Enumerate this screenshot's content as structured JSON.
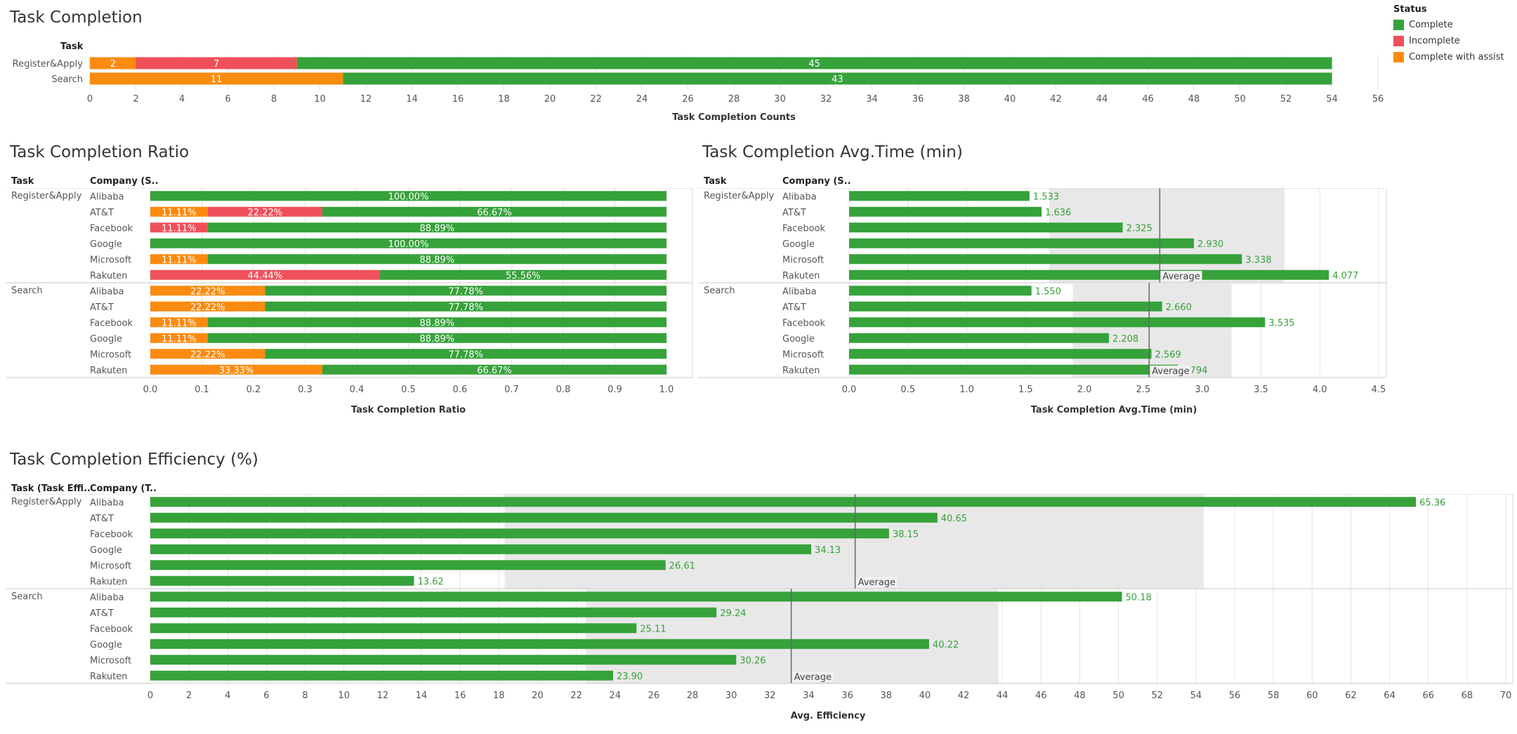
{
  "colors": {
    "complete": "#36a23a",
    "incomplete": "#f0505a",
    "assist": "#fb8b10",
    "grid": "#e4e4e4",
    "band": "#e8e8e8",
    "text": "#555555",
    "valueText": "#36a23a"
  },
  "legend": {
    "title": "Status",
    "items": [
      {
        "label": "Complete",
        "color": "#36a23a"
      },
      {
        "label": "Incomplete",
        "color": "#f0505a"
      },
      {
        "label": "Complete with assist",
        "color": "#fb8b10"
      }
    ]
  },
  "chart_data": [
    {
      "id": "completion",
      "type": "bar",
      "stacked": true,
      "title": "Task Completion",
      "row_header": "Task",
      "xlabel": "Task Completion Counts",
      "xlim": [
        0,
        56
      ],
      "xticks": [
        0,
        2,
        4,
        6,
        8,
        10,
        12,
        14,
        16,
        18,
        20,
        22,
        24,
        26,
        28,
        30,
        32,
        34,
        36,
        38,
        40,
        42,
        44,
        46,
        48,
        50,
        52,
        54,
        56
      ],
      "categories": [
        "Register&Apply",
        "Search"
      ],
      "series": [
        {
          "name": "Complete with assist",
          "color": "#fb8b10",
          "values": [
            2,
            11
          ],
          "labels": [
            "2",
            "11"
          ]
        },
        {
          "name": "Incomplete",
          "color": "#f0505a",
          "values": [
            7,
            0
          ],
          "labels": [
            "7",
            ""
          ]
        },
        {
          "name": "Complete",
          "color": "#36a23a",
          "values": [
            45,
            43
          ],
          "labels": [
            "45",
            "43"
          ]
        }
      ]
    },
    {
      "id": "ratio",
      "type": "bar",
      "stacked": true,
      "title": "Task Completion Ratio",
      "headers": [
        "Task",
        "Company (S.."
      ],
      "xlabel": "Task Completion Ratio",
      "xlim": [
        0,
        1
      ],
      "xticks": [
        "0.0",
        "0.1",
        "0.2",
        "0.3",
        "0.4",
        "0.5",
        "0.6",
        "0.7",
        "0.8",
        "0.9",
        "1.0"
      ],
      "groups": [
        {
          "task": "Register&Apply",
          "rows": [
            {
              "company": "Alibaba",
              "segments": [
                {
                  "status": "Complete",
                  "value": 1.0,
                  "label": "100.00%"
                }
              ]
            },
            {
              "company": "AT&T",
              "segments": [
                {
                  "status": "Complete with assist",
                  "value": 0.1111,
                  "label": "11.11%"
                },
                {
                  "status": "Incomplete",
                  "value": 0.2222,
                  "label": "22.22%"
                },
                {
                  "status": "Complete",
                  "value": 0.6667,
                  "label": "66.67%"
                }
              ]
            },
            {
              "company": "Facebook",
              "segments": [
                {
                  "status": "Incomplete",
                  "value": 0.1111,
                  "label": "11.11%"
                },
                {
                  "status": "Complete",
                  "value": 0.8889,
                  "label": "88.89%"
                }
              ]
            },
            {
              "company": "Google",
              "segments": [
                {
                  "status": "Complete",
                  "value": 1.0,
                  "label": "100.00%"
                }
              ]
            },
            {
              "company": "Microsoft",
              "segments": [
                {
                  "status": "Complete with assist",
                  "value": 0.1111,
                  "label": "11.11%"
                },
                {
                  "status": "Complete",
                  "value": 0.8889,
                  "label": "88.89%"
                }
              ]
            },
            {
              "company": "Rakuten",
              "segments": [
                {
                  "status": "Incomplete",
                  "value": 0.4444,
                  "label": "44.44%"
                },
                {
                  "status": "Complete",
                  "value": 0.5556,
                  "label": "55.56%"
                }
              ]
            }
          ]
        },
        {
          "task": "Search",
          "rows": [
            {
              "company": "Alibaba",
              "segments": [
                {
                  "status": "Complete with assist",
                  "value": 0.2222,
                  "label": "22.22%"
                },
                {
                  "status": "Complete",
                  "value": 0.7778,
                  "label": "77.78%"
                }
              ]
            },
            {
              "company": "AT&T",
              "segments": [
                {
                  "status": "Complete with assist",
                  "value": 0.2222,
                  "label": "22.22%"
                },
                {
                  "status": "Complete",
                  "value": 0.7778,
                  "label": "77.78%"
                }
              ]
            },
            {
              "company": "Facebook",
              "segments": [
                {
                  "status": "Complete with assist",
                  "value": 0.1111,
                  "label": "11.11%"
                },
                {
                  "status": "Complete",
                  "value": 0.8889,
                  "label": "88.89%"
                }
              ]
            },
            {
              "company": "Google",
              "segments": [
                {
                  "status": "Complete with assist",
                  "value": 0.1111,
                  "label": "11.11%"
                },
                {
                  "status": "Complete",
                  "value": 0.8889,
                  "label": "88.89%"
                }
              ]
            },
            {
              "company": "Microsoft",
              "segments": [
                {
                  "status": "Complete with assist",
                  "value": 0.2222,
                  "label": "22.22%"
                },
                {
                  "status": "Complete",
                  "value": 0.7778,
                  "label": "77.78%"
                }
              ]
            },
            {
              "company": "Rakuten",
              "segments": [
                {
                  "status": "Complete with assist",
                  "value": 0.3333,
                  "label": "33.33%"
                },
                {
                  "status": "Complete",
                  "value": 0.6667,
                  "label": "66.67%"
                }
              ]
            }
          ]
        }
      ]
    },
    {
      "id": "avgtime",
      "type": "bar",
      "title": "Task Completion Avg.Time (min)",
      "headers": [
        "Task",
        "Company (S.."
      ],
      "xlabel": "Task Completion Avg.Time (min)",
      "xlim": [
        0,
        4.5
      ],
      "xticks": [
        "0.0",
        "0.5",
        "1.0",
        "1.5",
        "2.0",
        "2.5",
        "3.0",
        "3.5",
        "4.0",
        "4.5"
      ],
      "reference_label": "Average",
      "groups": [
        {
          "task": "Register&Apply",
          "average": 2.64,
          "band": [
            1.7,
            3.7
          ],
          "rows": [
            {
              "company": "Alibaba",
              "value": 1.533,
              "label": "1.533"
            },
            {
              "company": "AT&T",
              "value": 1.636,
              "label": "1.636"
            },
            {
              "company": "Facebook",
              "value": 2.325,
              "label": "2.325"
            },
            {
              "company": "Google",
              "value": 2.93,
              "label": "2.930"
            },
            {
              "company": "Microsoft",
              "value": 3.338,
              "label": "3.338"
            },
            {
              "company": "Rakuten",
              "value": 4.077,
              "label": "4.077"
            }
          ]
        },
        {
          "task": "Search",
          "average": 2.55,
          "band": [
            1.9,
            3.25
          ],
          "rows": [
            {
              "company": "Alibaba",
              "value": 1.55,
              "label": "1.550"
            },
            {
              "company": "AT&T",
              "value": 2.66,
              "label": "2.660"
            },
            {
              "company": "Facebook",
              "value": 3.535,
              "label": "3.535"
            },
            {
              "company": "Google",
              "value": 2.208,
              "label": "2.208"
            },
            {
              "company": "Microsoft",
              "value": 2.569,
              "label": "2.569"
            },
            {
              "company": "Rakuten",
              "value": 2.794,
              "label": "2.794"
            }
          ]
        }
      ]
    },
    {
      "id": "efficiency",
      "type": "bar",
      "title": "Task Completion Efficiency (%)",
      "headers": [
        "Task (Task Effi..",
        "Company (T.."
      ],
      "xlabel": "Avg. Efficiency",
      "xlim": [
        0,
        70
      ],
      "xticks": [
        "0",
        "2",
        "4",
        "6",
        "8",
        "10",
        "12",
        "14",
        "16",
        "18",
        "20",
        "22",
        "24",
        "26",
        "28",
        "30",
        "32",
        "34",
        "36",
        "38",
        "40",
        "42",
        "44",
        "46",
        "48",
        "50",
        "52",
        "54",
        "56",
        "58",
        "60",
        "62",
        "64",
        "66",
        "68",
        "70"
      ],
      "reference_label": "Average",
      "groups": [
        {
          "task": "Register&Apply",
          "average": 36.4,
          "band": [
            18.3,
            54.4
          ],
          "rows": [
            {
              "company": "Alibaba",
              "value": 65.36,
              "label": "65.36"
            },
            {
              "company": "AT&T",
              "value": 40.65,
              "label": "40.65"
            },
            {
              "company": "Facebook",
              "value": 38.15,
              "label": "38.15"
            },
            {
              "company": "Google",
              "value": 34.13,
              "label": "34.13"
            },
            {
              "company": "Microsoft",
              "value": 26.61,
              "label": "26.61"
            },
            {
              "company": "Rakuten",
              "value": 13.62,
              "label": "13.62"
            }
          ]
        },
        {
          "task": "Search",
          "average": 33.1,
          "band": [
            22.5,
            43.8
          ],
          "rows": [
            {
              "company": "Alibaba",
              "value": 50.18,
              "label": "50.18"
            },
            {
              "company": "AT&T",
              "value": 29.24,
              "label": "29.24"
            },
            {
              "company": "Facebook",
              "value": 25.11,
              "label": "25.11"
            },
            {
              "company": "Google",
              "value": 40.22,
              "label": "40.22"
            },
            {
              "company": "Microsoft",
              "value": 30.26,
              "label": "30.26"
            },
            {
              "company": "Rakuten",
              "value": 23.9,
              "label": "23.90"
            }
          ]
        }
      ]
    }
  ]
}
